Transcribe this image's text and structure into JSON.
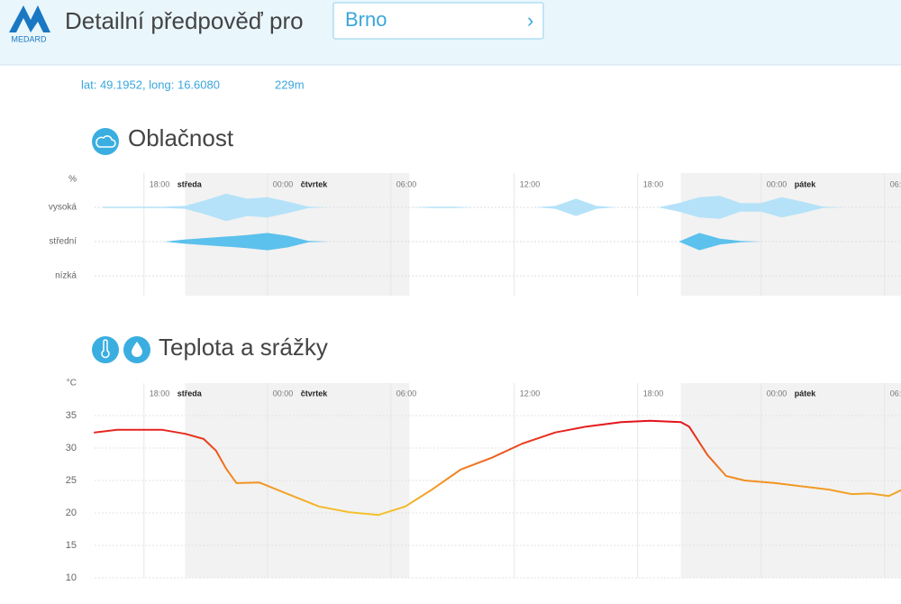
{
  "header": {
    "logo": "MEDARD",
    "title": "Detailní předpověď pro",
    "location": "Brno",
    "chevron": "›"
  },
  "coords": {
    "position": "lat: 49.1952, long: 16.6080",
    "altitude": "229m"
  },
  "sections": [
    {
      "title": "Oblačnost"
    },
    {
      "title": "Teplota a srážky"
    }
  ],
  "chart_data": [
    {
      "type": "cloud-band",
      "y_unit": "%",
      "x": [
        16,
        17,
        18,
        19,
        20,
        21,
        22,
        23,
        24,
        25,
        26,
        27,
        28,
        29,
        30,
        31,
        32,
        33,
        34,
        35,
        36,
        37,
        38,
        39,
        40,
        41,
        42,
        43,
        44,
        45,
        46,
        47,
        48,
        49,
        50,
        51,
        52,
        53,
        54
      ],
      "series": [
        {
          "name": "vysoká",
          "color": "#b5e2f8",
          "values": [
            5,
            5,
            5,
            5,
            10,
            50,
            95,
            60,
            70,
            40,
            5,
            0,
            0,
            0,
            0,
            0,
            5,
            5,
            0,
            0,
            0,
            0,
            10,
            60,
            10,
            0,
            0,
            0,
            30,
            70,
            80,
            30,
            30,
            70,
            40,
            5,
            0,
            0,
            0
          ]
        },
        {
          "name": "střední",
          "color": "#5cc1ec",
          "values": [
            0,
            0,
            0,
            0,
            15,
            25,
            35,
            45,
            60,
            40,
            5,
            0,
            0,
            0,
            0,
            0,
            0,
            0,
            0,
            0,
            0,
            0,
            0,
            0,
            0,
            0,
            0,
            0,
            0,
            60,
            20,
            5,
            0,
            0,
            0,
            0,
            0,
            0,
            0
          ]
        },
        {
          "name": "nízká",
          "color": "#2f9fd8",
          "values": [
            0,
            0,
            0,
            0,
            0,
            0,
            0,
            0,
            0,
            0,
            0,
            0,
            0,
            0,
            0,
            0,
            0,
            0,
            0,
            0,
            0,
            0,
            0,
            0,
            0,
            0,
            0,
            0,
            0,
            0,
            0,
            0,
            0,
            0,
            0,
            0,
            0,
            0,
            0
          ]
        }
      ],
      "xlim": [
        15.6,
        54.8
      ],
      "xticks": [
        {
          "value": 18,
          "label": "18:00"
        },
        {
          "value": 24,
          "label": "00:00"
        },
        {
          "value": 30,
          "label": "06:00"
        },
        {
          "value": 36,
          "label": "12:00"
        },
        {
          "value": 42,
          "label": "18:00"
        },
        {
          "value": 48,
          "label": "00:00"
        },
        {
          "value": 54,
          "label": "06:00"
        }
      ],
      "day_labels": [
        {
          "value": 18,
          "label": "středa"
        },
        {
          "value": 24,
          "label": "čtvrtek"
        },
        {
          "value": 48,
          "label": "pátek"
        }
      ],
      "night": [
        [
          20,
          30.9
        ],
        [
          44.1,
          54.8
        ]
      ]
    },
    {
      "type": "line",
      "y_unit": "°C",
      "x": [
        15.6,
        16.7,
        18.9,
        20,
        20.9,
        21.5,
        22,
        22.5,
        23.6,
        25,
        26.5,
        28,
        29.4,
        30.7,
        32,
        33.4,
        34.9,
        36.4,
        38,
        39.5,
        41.2,
        42.6,
        44.1,
        44.5,
        45.4,
        46.3,
        47.2,
        48.7,
        50.5,
        51.3,
        52.4,
        53.3,
        54.2,
        54.8
      ],
      "values": [
        32.4,
        32.8,
        32.8,
        32.2,
        31.4,
        29.6,
        26.8,
        24.6,
        24.7,
        22.9,
        21,
        20.1,
        19.7,
        21,
        23.6,
        26.7,
        28.5,
        30.7,
        32.4,
        33.3,
        34,
        34.2,
        34,
        33.3,
        28.9,
        25.7,
        25,
        24.6,
        23.9,
        23.6,
        22.9,
        23,
        22.6,
        23.5
      ],
      "gradient": [
        {
          "value": 34,
          "color": "#e3121e"
        },
        {
          "value": 27,
          "color": "#f07a1e"
        },
        {
          "value": 20,
          "color": "#f4c22c"
        }
      ],
      "xlim": [
        15.6,
        54.8
      ],
      "ylim": [
        10,
        40
      ],
      "yticks": [
        10,
        15,
        20,
        25,
        30,
        35
      ],
      "xticks": [
        {
          "value": 18,
          "label": "18:00"
        },
        {
          "value": 24,
          "label": "00:00"
        },
        {
          "value": 30,
          "label": "06:00"
        },
        {
          "value": 36,
          "label": "12:00"
        },
        {
          "value": 42,
          "label": "18:00"
        },
        {
          "value": 48,
          "label": "00:00"
        },
        {
          "value": 54,
          "label": "06:00"
        }
      ],
      "day_labels": [
        {
          "value": 18,
          "label": "středa"
        },
        {
          "value": 24,
          "label": "čtvrtek"
        },
        {
          "value": 48,
          "label": "pátek"
        }
      ],
      "night": [
        [
          20,
          30.9
        ],
        [
          44.1,
          54.8
        ]
      ]
    }
  ]
}
